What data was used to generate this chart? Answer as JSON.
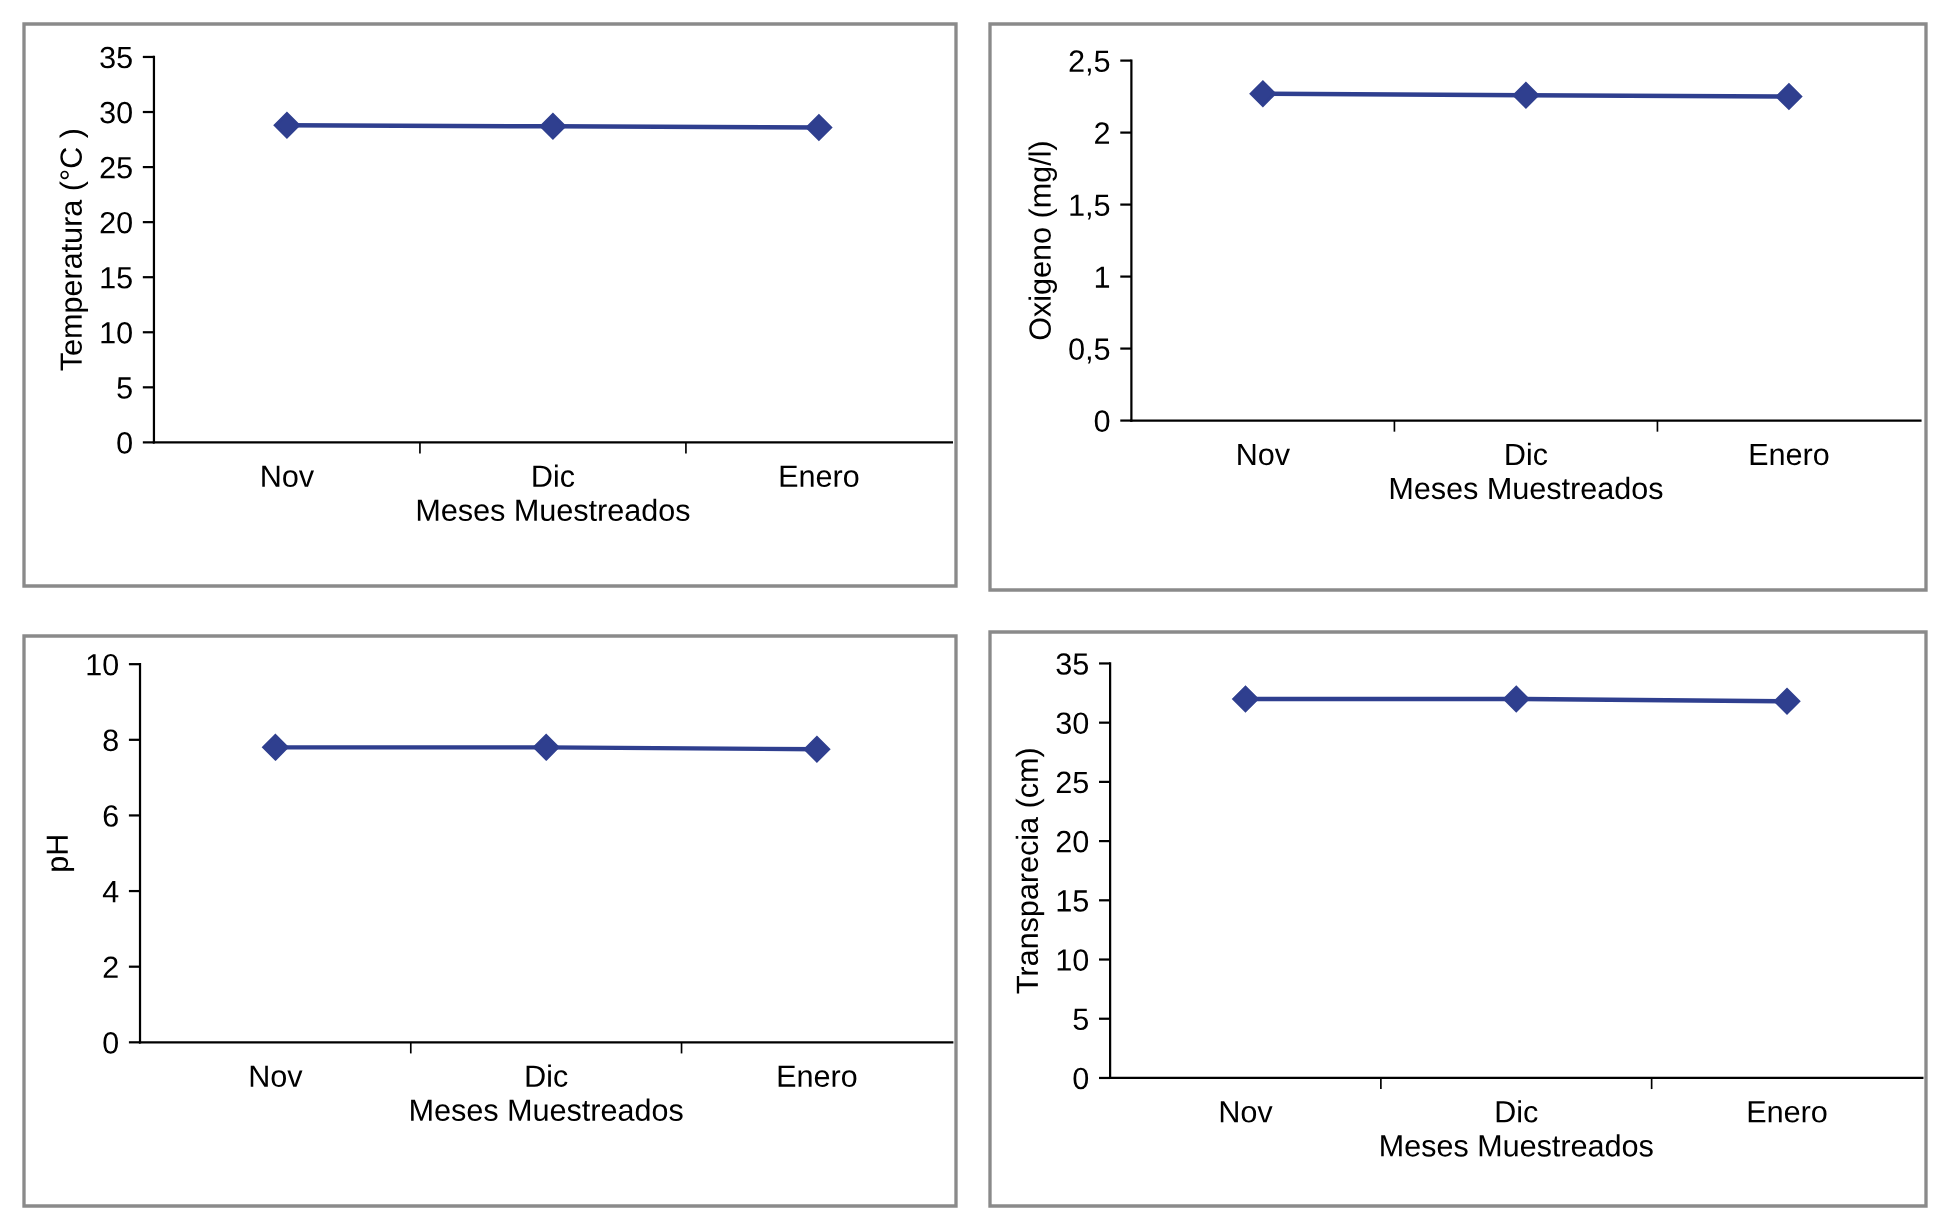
{
  "chart_data": [
    {
      "type": "line",
      "categories": [
        "Nov",
        "Dic",
        "Enero"
      ],
      "xlabel": "Meses Muestreados",
      "ylabel": "Temperatura (°C )",
      "series": [
        {
          "color": "#2f3f8f",
          "values": [
            28.8,
            28.7,
            28.6
          ]
        }
      ],
      "ylim": [
        0,
        35
      ],
      "yticks": [
        0,
        5,
        10,
        15,
        20,
        25,
        30,
        35
      ],
      "marker": "diamond",
      "line_style": "solid",
      "grid": false
    },
    {
      "type": "line",
      "categories": [
        "Nov",
        "Dic",
        "Enero"
      ],
      "xlabel": "Meses Muestreados",
      "ylabel": "Oxigeno (mg/l)",
      "series": [
        {
          "color": "#2f3f8f",
          "values": [
            2.27,
            2.26,
            2.25
          ]
        }
      ],
      "ylim": [
        0,
        2.5
      ],
      "yticks": [
        0,
        {
          "value": 0.5,
          "label": "0,5"
        },
        1,
        {
          "value": 1.5,
          "label": "1,5"
        },
        2,
        {
          "value": 2.5,
          "label": "2,5"
        }
      ],
      "marker": "diamond",
      "line_style": "solid",
      "grid": false
    },
    {
      "type": "line",
      "categories": [
        "Nov",
        "Dic",
        "Enero"
      ],
      "xlabel": "Meses Muestreados",
      "ylabel": "pH",
      "series": [
        {
          "color": "#2f3f8f",
          "values": [
            7.8,
            7.8,
            7.75
          ]
        }
      ],
      "ylim": [
        0,
        10
      ],
      "yticks": [
        0,
        2,
        4,
        6,
        8,
        10
      ],
      "marker": "diamond",
      "line_style": "solid",
      "grid": false
    },
    {
      "type": "line",
      "categories": [
        "Nov",
        "Dic",
        "Enero"
      ],
      "xlabel": "Meses Muestreados",
      "ylabel": "Transparecia (cm)",
      "series": [
        {
          "color": "#2f3f8f",
          "values": [
            32,
            32,
            31.8
          ]
        }
      ],
      "ylim": [
        0,
        35
      ],
      "yticks": [
        0,
        5,
        10,
        15,
        20,
        25,
        30,
        35
      ],
      "marker": "diamond",
      "line_style": "solid",
      "grid": false
    }
  ]
}
